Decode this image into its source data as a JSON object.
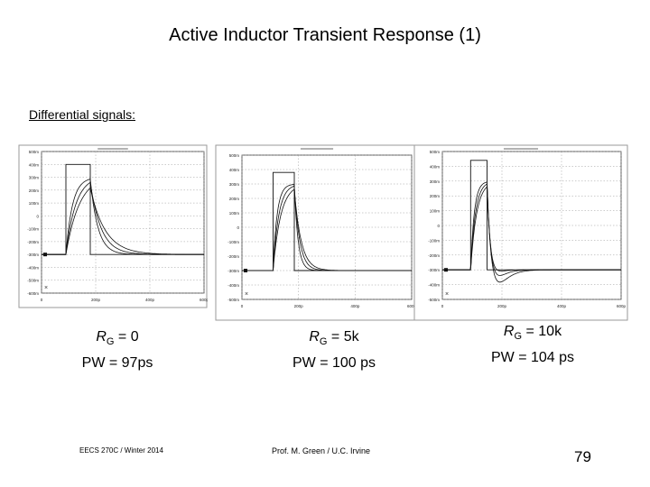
{
  "title": "Active Inductor Transient Response (1)",
  "subtitle": "Differential signals:",
  "footer": {
    "course": "EECS 270C / Winter 2014",
    "author": "Prof. M. Green / U.C. Irvine",
    "page": "79"
  },
  "captions": [
    {
      "r_letter": "R",
      "r_sub": "G",
      "r_value": " = 0",
      "pw": "PW = 97ps"
    },
    {
      "r_letter": "R",
      "r_sub": "G",
      "r_value": " = 5k",
      "pw": "PW = 100 ps"
    },
    {
      "r_letter": "R",
      "r_sub": "G",
      "r_value": " = 10k",
      "pw": "PW = 104 ps"
    }
  ],
  "chart_data": [
    {
      "type": "line",
      "xlim": [
        0,
        600
      ],
      "ylim": [
        -600,
        500
      ],
      "x_ticks": [
        "0",
        "200p",
        "400p",
        "600p"
      ],
      "x_tick_values": [
        0,
        200,
        400,
        600
      ],
      "y_ticks": [
        "500m",
        "400m",
        "300m",
        "200m",
        "100m",
        "0",
        "-100m",
        "-200m",
        "-300m",
        "-400m",
        "-500m",
        "-600m"
      ],
      "y_tick_values": [
        500,
        400,
        300,
        200,
        100,
        0,
        -100,
        -200,
        -300,
        -400,
        -500,
        -600
      ],
      "input": {
        "low": -300,
        "high": 400,
        "rise": 90,
        "fall": 180
      },
      "outputs": [
        {
          "peak": 300,
          "tau_r": 24,
          "tau_f": 28
        },
        {
          "peak": 310,
          "tau_r": 36,
          "tau_f": 40
        },
        {
          "peak": 320,
          "tau_r": 50,
          "tau_f": 55
        }
      ],
      "grid": true
    },
    {
      "type": "line",
      "xlim": [
        0,
        600
      ],
      "ylim": [
        -500,
        500
      ],
      "x_ticks": [
        "0",
        "200p",
        "400p",
        "600p"
      ],
      "x_tick_values": [
        0,
        200,
        400,
        600
      ],
      "y_ticks": [
        "500m",
        "400m",
        "300m",
        "200m",
        "100m",
        "0",
        "-100m",
        "-200m",
        "-300m",
        "-400m",
        "-500m"
      ],
      "y_tick_values": [
        500,
        400,
        300,
        200,
        100,
        0,
        -100,
        -200,
        -300,
        -400,
        -500
      ],
      "input": {
        "low": -300,
        "high": 380,
        "rise": 110,
        "fall": 185
      },
      "outputs": [
        {
          "peak": 300,
          "tau_r": 14,
          "tau_f": 14,
          "overshoot": 15
        },
        {
          "peak": 300,
          "tau_r": 20,
          "tau_f": 20,
          "overshoot": 15
        },
        {
          "peak": 300,
          "tau_r": 27,
          "tau_f": 26,
          "overshoot": 15
        }
      ],
      "grid": true
    },
    {
      "type": "line",
      "xlim": [
        0,
        600
      ],
      "ylim": [
        -500,
        500
      ],
      "x_ticks": [
        "0",
        "200p",
        "400p",
        "600p"
      ],
      "x_tick_values": [
        0,
        200,
        400,
        600
      ],
      "y_ticks": [
        "500m",
        "400m",
        "300m",
        "200m",
        "100m",
        "0",
        "-100m",
        "-200m",
        "-300m",
        "-400m",
        "-500m"
      ],
      "y_tick_values": [
        500,
        400,
        300,
        200,
        100,
        0,
        -100,
        -200,
        -300,
        -400,
        -500
      ],
      "input": {
        "low": -300,
        "high": 440,
        "rise": 95,
        "fall": 150
      },
      "outputs": [
        {
          "peak": 300,
          "tau_r": 12,
          "tau_f": 14,
          "overshoot": 100
        },
        {
          "peak": 300,
          "tau_r": 16,
          "tau_f": 18,
          "overshoot": 170
        },
        {
          "peak": 300,
          "tau_r": 20,
          "tau_f": 22,
          "overshoot": 240
        }
      ],
      "grid": true
    }
  ]
}
